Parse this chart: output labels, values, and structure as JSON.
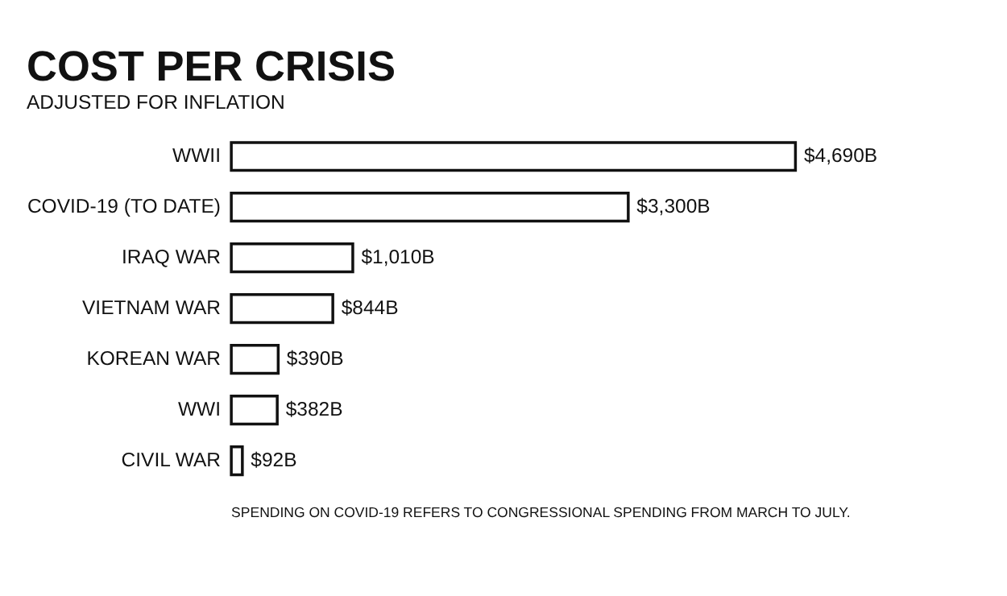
{
  "chart_data": {
    "type": "bar",
    "orientation": "horizontal",
    "title": "COST PER CRISIS",
    "subtitle": "ADJUSTED FOR INFLATION",
    "categories": [
      "WWII",
      "COVID-19 (TO DATE)",
      "IRAQ WAR",
      "VIETNAM WAR",
      "KOREAN WAR",
      "WWI",
      "CIVIL WAR"
    ],
    "values": [
      4690,
      3300,
      1010,
      844,
      390,
      382,
      92
    ],
    "value_labels": [
      "$4,690B",
      "$3,300B",
      "$1,010B",
      "$844B",
      "$390B",
      "$382B",
      "$92B"
    ],
    "color": "#ffffff",
    "annotations": [
      "SPENDING ON COVID-19 REFERS TO CONGRESSIONAL SPENDING FROM MARCH TO JULY."
    ]
  }
}
